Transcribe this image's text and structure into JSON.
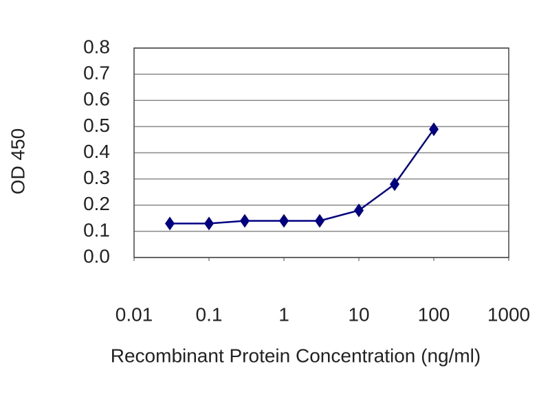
{
  "chart_data": {
    "type": "line",
    "x_label": "Recombinant Protein Concentration (ng/ml)",
    "y_label": "OD 450",
    "x": [
      0.03,
      0.1,
      0.3,
      1,
      3,
      10,
      30,
      100
    ],
    "series": [
      {
        "color": "#000080",
        "values": [
          0.13,
          0.13,
          0.14,
          0.14,
          0.14,
          0.18,
          0.28,
          0.49
        ]
      }
    ],
    "xscale": "log",
    "xlim": [
      0.01,
      1000
    ],
    "xticks": [
      0.01,
      0.1,
      1,
      10,
      100,
      1000
    ],
    "ylim": [
      0,
      0.8
    ],
    "yticks": [
      {
        "value": 0,
        "label": "0.0"
      },
      0.1,
      0.2,
      0.3,
      0.4,
      0.5,
      0.6,
      0.7,
      0.8
    ],
    "grid": true
  }
}
